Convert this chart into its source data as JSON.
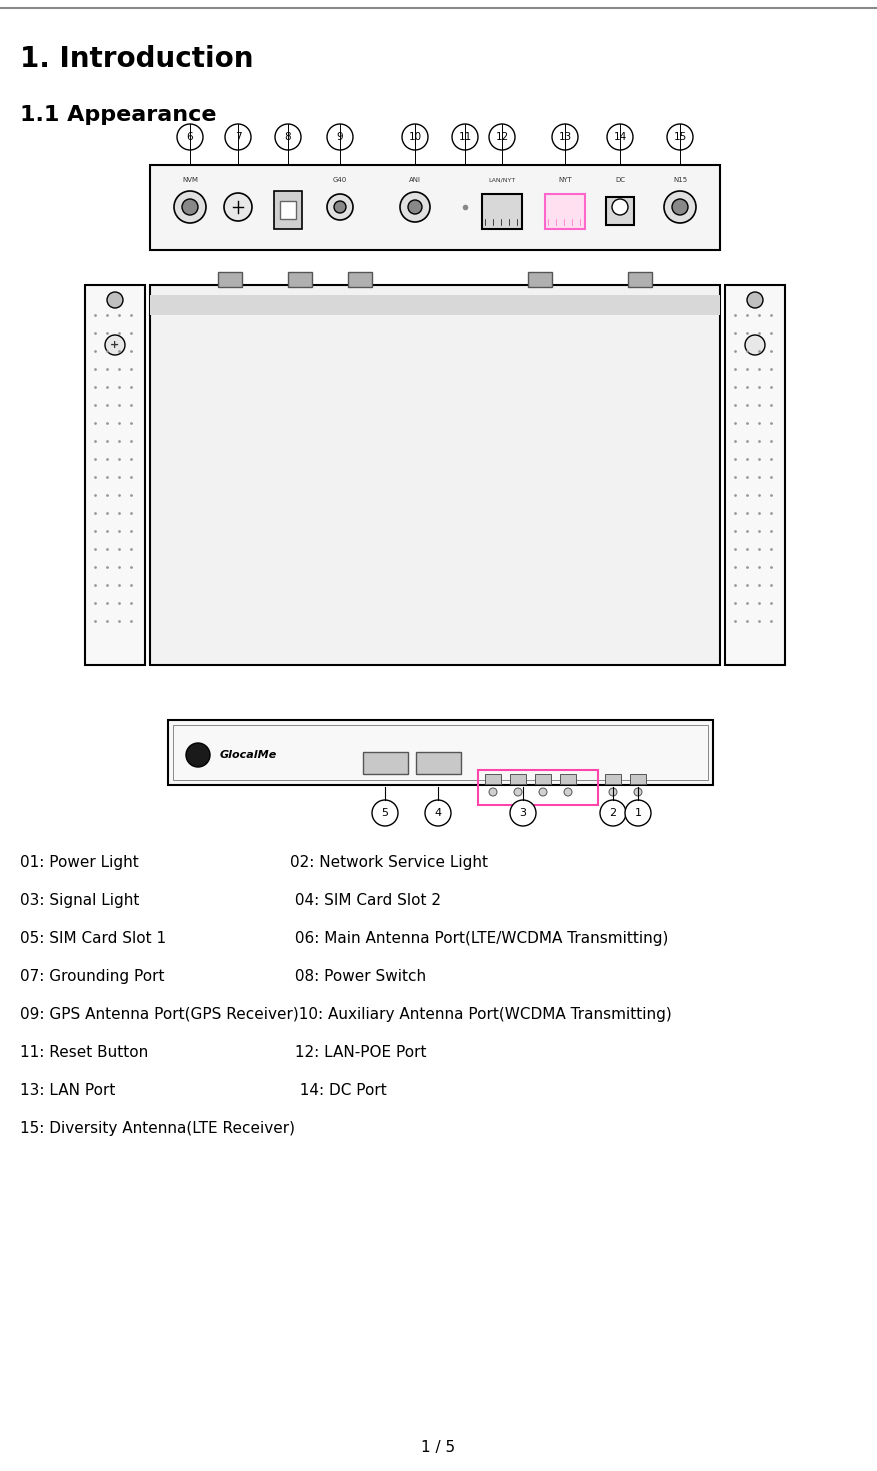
{
  "title": "1. Introduction",
  "subtitle": "1.1 Appearance",
  "page_indicator": "1 / 5",
  "descriptions": [
    [
      "01: Power Light",
      "02: Network Service Light"
    ],
    [
      "03: Signal Light",
      " 04: SIM Card Slot 2"
    ],
    [
      "05: SIM Card Slot 1",
      " 06: Main Antenna Port(LTE/WCDMA Transmitting)"
    ],
    [
      "07: Grounding Port",
      " 08: Power Switch"
    ],
    [
      "09: GPS Antenna Port(GPS Receiver)10: Auxiliary Antenna Port(WCDMA Transmitting)",
      ""
    ],
    [
      "11: Reset Button",
      " 12: LAN-POE Port"
    ],
    [
      "13: LAN Port",
      "  14: DC Port"
    ],
    [
      "15: Diversity Antenna(LTE Receiver)",
      ""
    ]
  ],
  "background_color": "#ffffff",
  "text_color": "#000000",
  "line_color": "#000000",
  "title_fontsize": 20,
  "subtitle_fontsize": 16,
  "body_fontsize": 11,
  "page_fontsize": 11
}
